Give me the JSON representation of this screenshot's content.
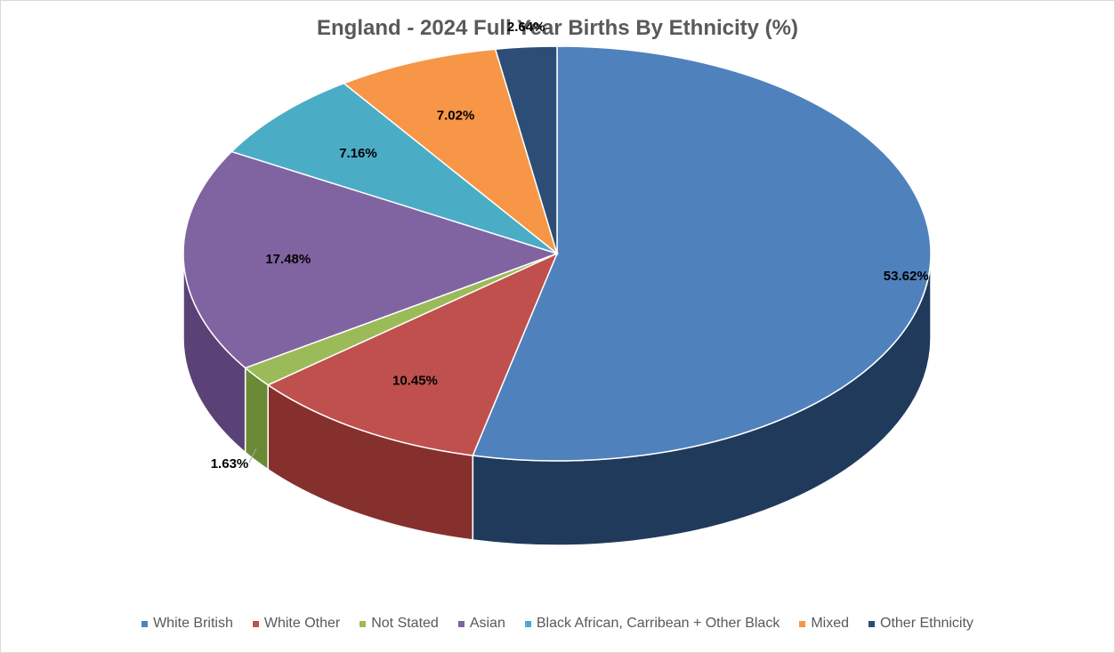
{
  "chart_data": {
    "type": "pie",
    "title": "England - 2024 Full Year Births By Ethnicity (%)",
    "style": "3d",
    "legend_position": "bottom",
    "slices": [
      {
        "label": "White British",
        "value": 53.62,
        "data_label": "53.62%",
        "color": "#4f81bd",
        "side_color": "#203a5c"
      },
      {
        "label": "White Other",
        "value": 10.45,
        "data_label": "10.45%",
        "color": "#c0504d",
        "side_color": "#86302e"
      },
      {
        "label": "Not Stated",
        "value": 1.63,
        "data_label": "1.63%",
        "color": "#9bbb59",
        "side_color": "#6a8a36"
      },
      {
        "label": "Asian",
        "value": 17.48,
        "data_label": "17.48%",
        "color": "#8064a2",
        "side_color": "#5a4276"
      },
      {
        "label": "Black African, Carribean + Other Black",
        "value": 7.16,
        "data_label": "7.16%",
        "color": "#4bacc6",
        "side_color": "#2e7f95"
      },
      {
        "label": "Mixed",
        "value": 7.02,
        "data_label": "7.02%",
        "color": "#f79646",
        "side_color": "#b86a2a"
      },
      {
        "label": "Other Ethnicity",
        "value": 2.64,
        "data_label": "2.64%",
        "color": "#2c4d75",
        "side_color": "#1a2f4a"
      }
    ]
  }
}
